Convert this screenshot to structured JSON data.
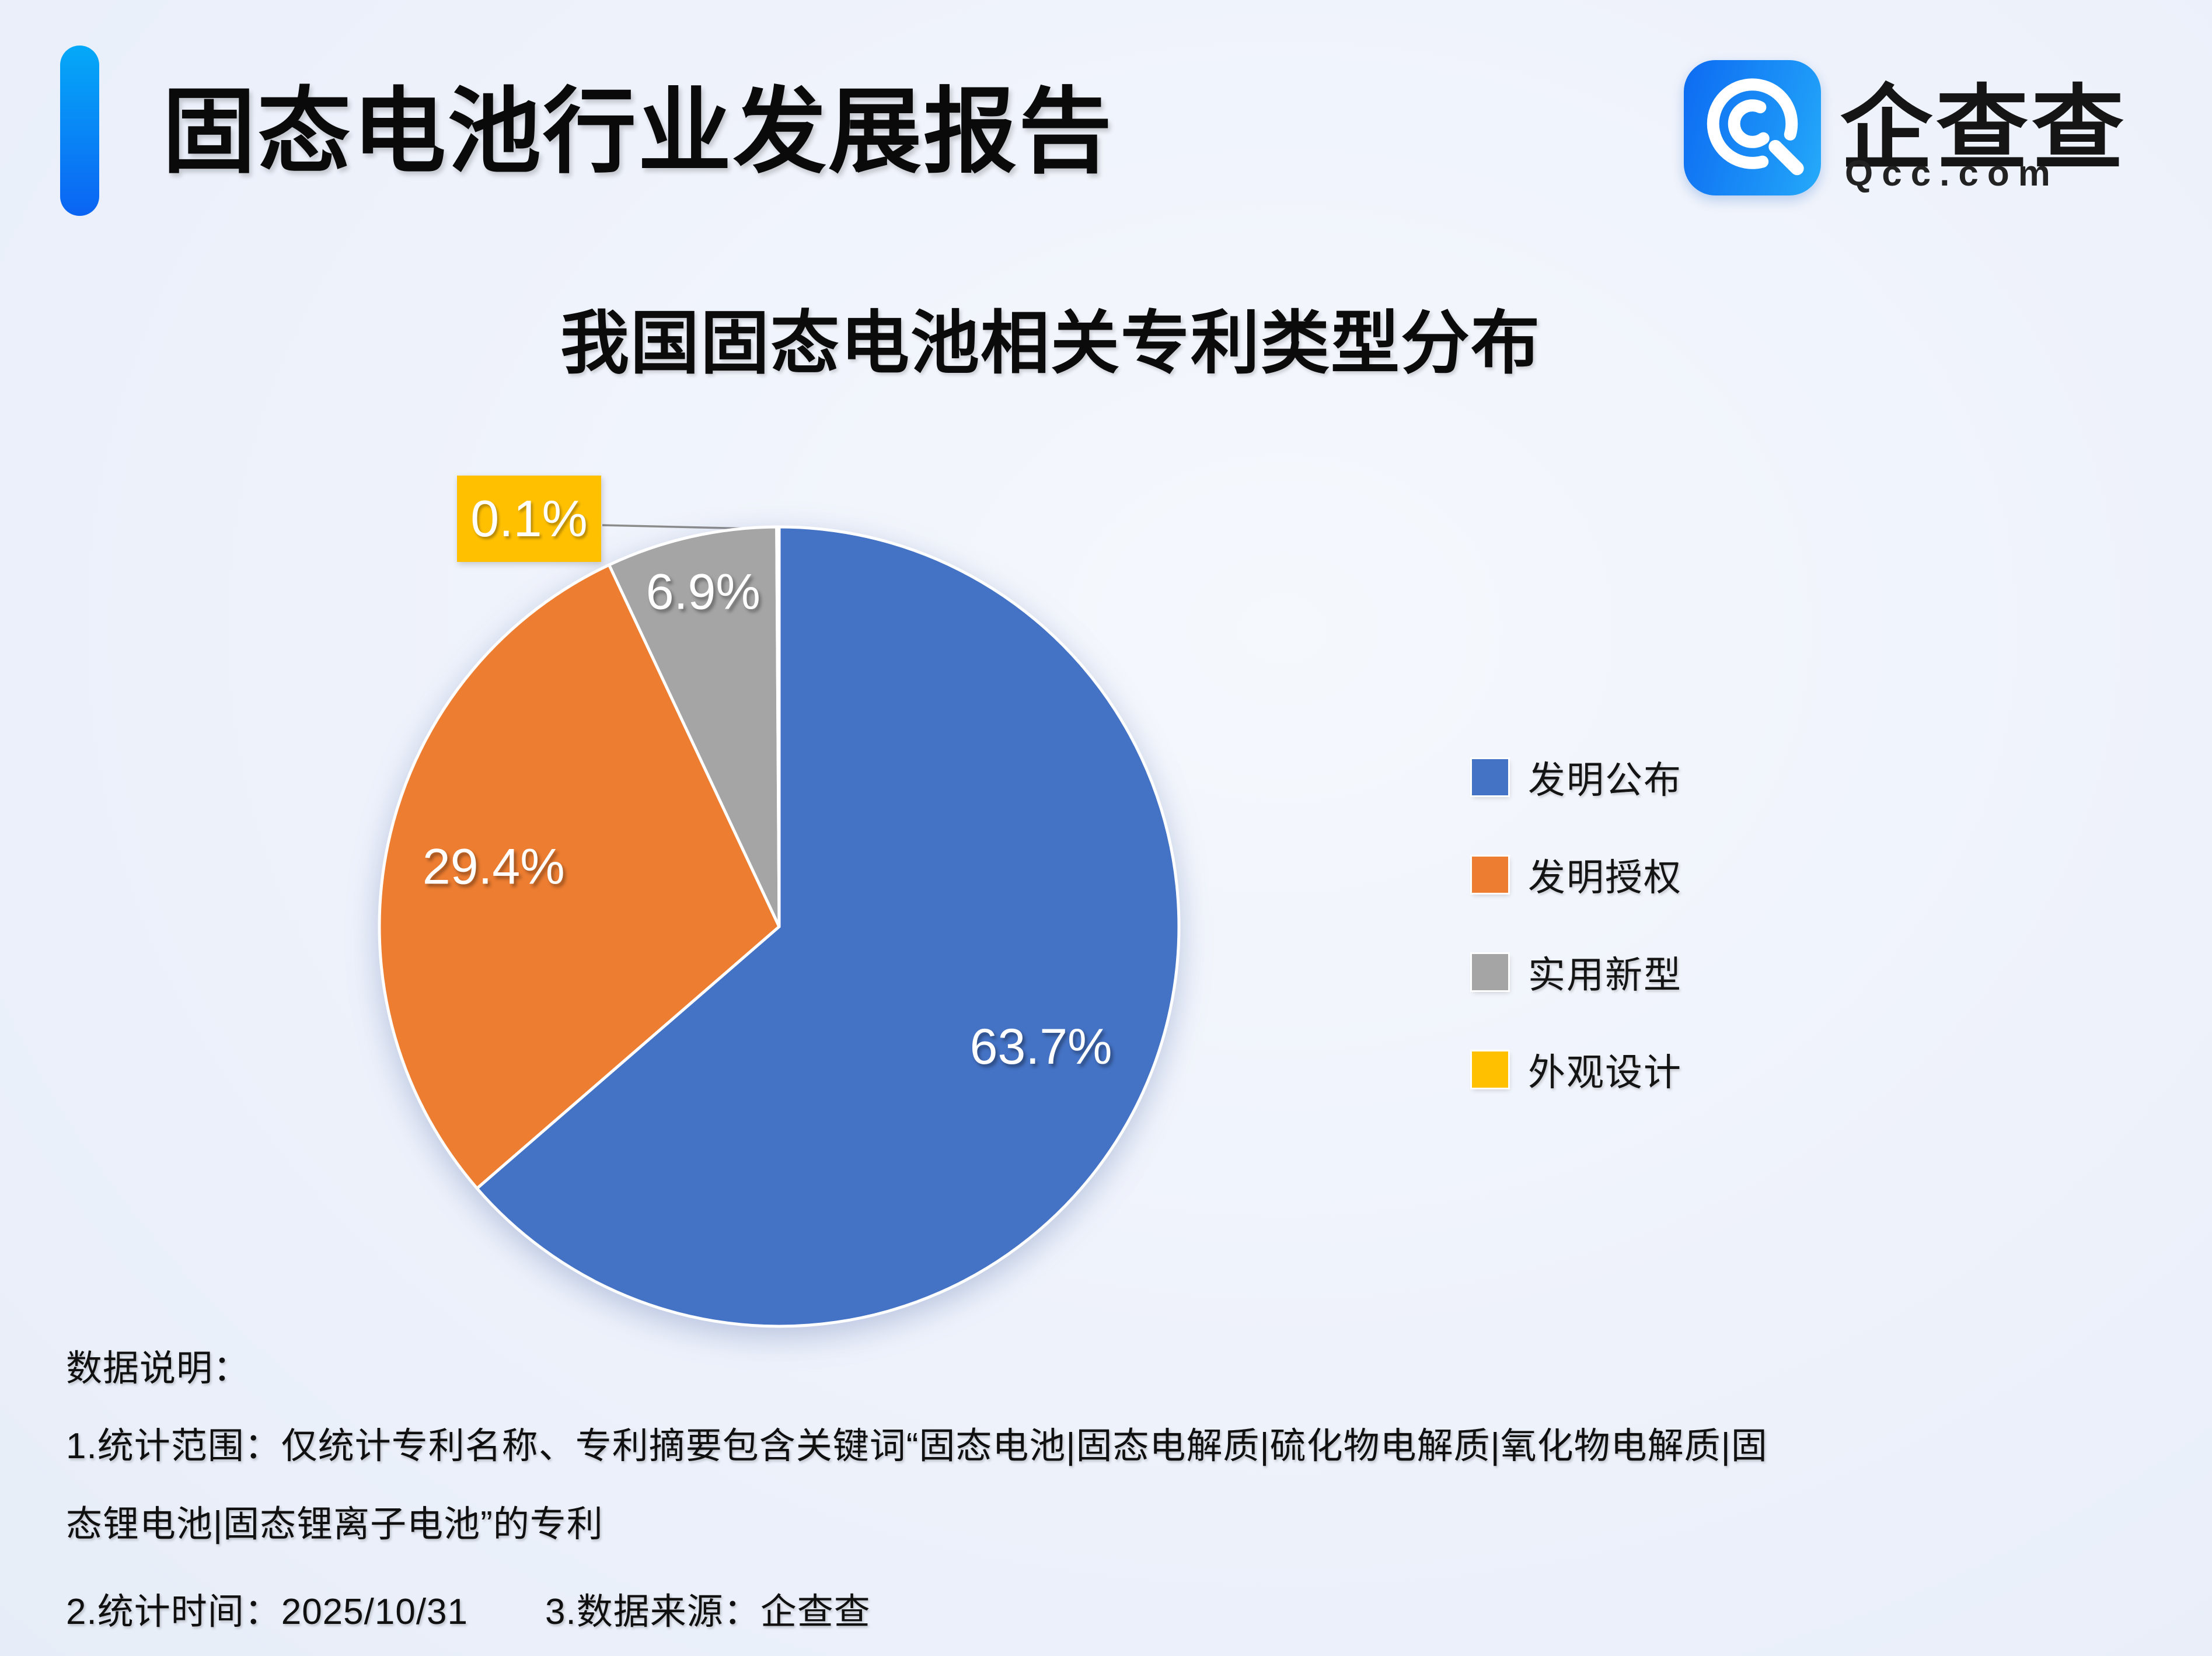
{
  "header": {
    "title": "固态电池行业发展报告",
    "brand": {
      "name": "企查查",
      "domain": "Qcc.com",
      "icon_color_start": "#0D6BF2",
      "icon_color_end": "#27ACFA"
    },
    "accent_bar_colors": {
      "top": "#05A9F8",
      "bottom": "#0B64F3"
    }
  },
  "chart_data": {
    "type": "pie",
    "title": "我国固态电池相关专利类型分布",
    "series": [
      {
        "label": "发明公布",
        "value": 63.7,
        "display": "63.7%",
        "color": "#4472C4"
      },
      {
        "label": "发明授权",
        "value": 29.4,
        "display": "29.4%",
        "color": "#ED7D31"
      },
      {
        "label": "实用新型",
        "value": 6.9,
        "display": "6.9%",
        "color": "#A5A5A5"
      },
      {
        "label": "外观设计",
        "value": 0.1,
        "display": "0.1%",
        "color": "#FFC000"
      }
    ],
    "start_angle_deg": 0,
    "direction": "clockwise",
    "legend_position": "right",
    "slice_label_color": "#ffffff",
    "callout": {
      "text": "0.1%",
      "background": "#FFC000",
      "leader_color": "#8C8C8C"
    }
  },
  "notes": {
    "heading": "数据说明：",
    "scope_line1": "1.统计范围：仅统计专利名称、专利摘要包含关键词“固态电池|固态电解质|硫化物电解质|氧化物电解质|固",
    "scope_line2": "态锂电池|固态锂离子电池”的专利",
    "time": "2.统计时间：2025/10/31",
    "source": "3.数据来源：企查查"
  }
}
